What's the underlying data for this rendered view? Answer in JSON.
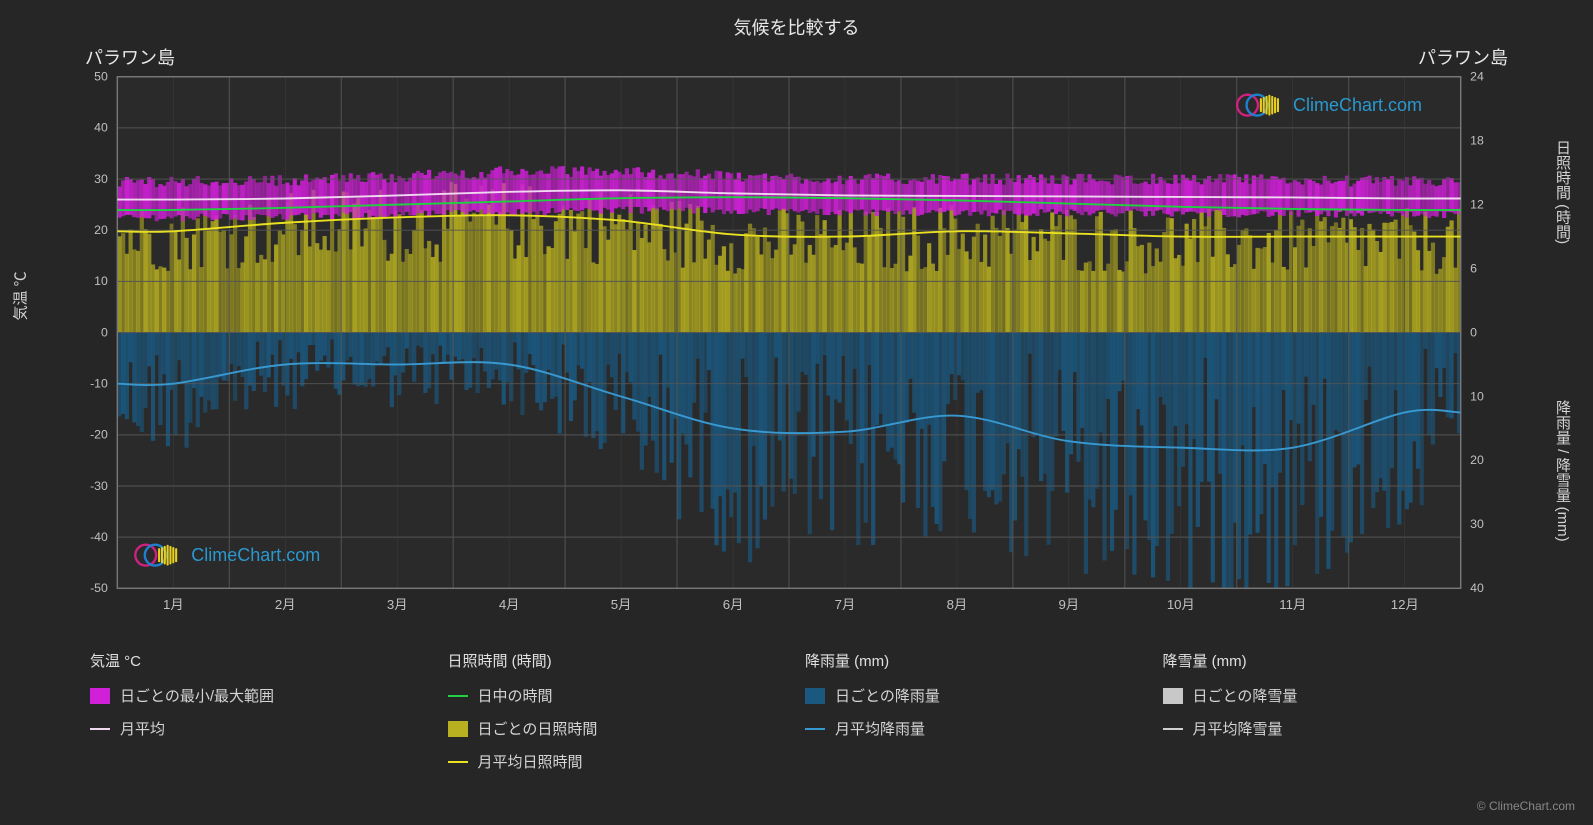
{
  "title": "気候を比較する",
  "location_left": "パラワン島",
  "location_right": "パラワン島",
  "left_axis": {
    "label": "気温 ℃",
    "min": -50,
    "max": 50,
    "step": 10,
    "ticks": [
      50,
      40,
      30,
      20,
      10,
      0,
      -10,
      -20,
      -30,
      -40,
      -50
    ]
  },
  "right_axis_top": {
    "label": "日照時間 (時間)",
    "ticks": [
      24,
      18,
      12,
      6,
      0
    ],
    "min": 0,
    "max": 24
  },
  "right_axis_bottom": {
    "label": "降雨量 / 降雪量 (mm)",
    "ticks": [
      0,
      10,
      20,
      30,
      40
    ],
    "min": 0,
    "max": 40
  },
  "months": [
    "1月",
    "2月",
    "3月",
    "4月",
    "5月",
    "6月",
    "7月",
    "8月",
    "9月",
    "10月",
    "11月",
    "12月"
  ],
  "logo_text": "ClimeChart.com",
  "copyright": "© ClimeChart.com",
  "colors": {
    "bg": "#262626",
    "grid": "#555555",
    "grid_minor": "#404040",
    "temp_band": "#d020d8",
    "temp_avg_line": "#f0d8f0",
    "daylight_line": "#20d040",
    "sunshine_band": "#b8b020",
    "sunshine_line": "#e8e020",
    "rain_band": "#1a5880",
    "rain_line": "#3898d0",
    "snow_band": "#c8c8c8",
    "snow_line": "#d0d0d0",
    "tick_text": "#c0c0c0",
    "logo_blue": "#2a98d0"
  },
  "series": {
    "temp_avg": [
      26.0,
      26.2,
      26.8,
      27.5,
      27.8,
      27.2,
      26.8,
      26.7,
      26.6,
      26.5,
      26.4,
      26.2
    ],
    "temp_min": [
      22.5,
      22.6,
      23.0,
      23.5,
      24.0,
      23.8,
      23.5,
      23.5,
      23.4,
      23.3,
      23.2,
      23.0
    ],
    "temp_max": [
      29.5,
      29.8,
      30.5,
      31.5,
      31.5,
      30.5,
      30.0,
      30.0,
      30.0,
      30.0,
      29.8,
      29.5
    ],
    "daylight": [
      11.5,
      11.7,
      12.0,
      12.3,
      12.6,
      12.7,
      12.6,
      12.4,
      12.1,
      11.8,
      11.6,
      11.5
    ],
    "sunshine_avg": [
      9.5,
      10.3,
      10.8,
      11.0,
      10.5,
      9.2,
      9.0,
      9.5,
      9.3,
      9.0,
      9.0,
      9.0
    ],
    "rain_avg": [
      8.0,
      5.0,
      5.0,
      5.0,
      10.0,
      15.0,
      15.5,
      13.0,
      17.0,
      18.0,
      18.0,
      12.5
    ]
  },
  "legend": {
    "cols": [
      {
        "heading": "気温 °C",
        "items": [
          {
            "type": "box",
            "color": "#d020d8",
            "label": "日ごとの最小/最大範囲"
          },
          {
            "type": "line",
            "color": "#f0d8f0",
            "label": "月平均"
          }
        ]
      },
      {
        "heading": "日照時間 (時間)",
        "items": [
          {
            "type": "line",
            "color": "#20d040",
            "label": "日中の時間"
          },
          {
            "type": "box",
            "color": "#b8b020",
            "label": "日ごとの日照時間"
          },
          {
            "type": "line",
            "color": "#e8e020",
            "label": "月平均日照時間"
          }
        ]
      },
      {
        "heading": "降雨量 (mm)",
        "items": [
          {
            "type": "box",
            "color": "#1a5880",
            "label": "日ごとの降雨量"
          },
          {
            "type": "line",
            "color": "#3898d0",
            "label": "月平均降雨量"
          }
        ]
      },
      {
        "heading": "降雪量 (mm)",
        "items": [
          {
            "type": "box",
            "color": "#c8c8c8",
            "label": "日ごとの降雪量"
          },
          {
            "type": "line",
            "color": "#d0d0d0",
            "label": "月平均降雪量"
          }
        ]
      }
    ]
  }
}
